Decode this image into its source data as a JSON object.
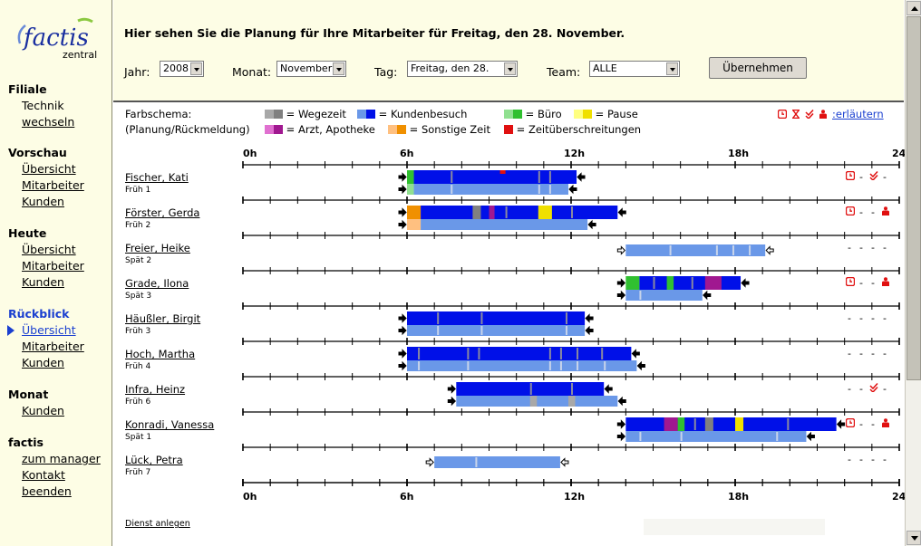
{
  "logo": {
    "brand": "factis",
    "sub": "zentral"
  },
  "sidebar": [
    {
      "title": "Filiale",
      "items": [
        "Technik",
        "wechseln"
      ]
    },
    {
      "title": "Vorschau",
      "items": [
        "Übersicht",
        "Mitarbeiter",
        "Kunden"
      ]
    },
    {
      "title": "Heute",
      "items": [
        "Übersicht",
        "Mitarbeiter",
        "Kunden"
      ]
    },
    {
      "title": "Rückblick",
      "items": [
        "Übersicht",
        "Mitarbeiter",
        "Kunden"
      ],
      "active_item": "Übersicht"
    },
    {
      "title": "Monat",
      "items": [
        "Kunden"
      ]
    },
    {
      "title": "factis",
      "items": [
        "zum manager",
        "Kontakt",
        "beenden"
      ]
    }
  ],
  "header": {
    "headline": "Hier sehen Sie die Planung für Ihre Mitarbeiter für Freitag, den 28. November.",
    "filters": {
      "year_label": "Jahr:",
      "year_value": "2008",
      "month_label": "Monat:",
      "month_value": "November",
      "day_label": "Tag:",
      "day_value": "Freitag, den 28.",
      "team_label": "Team:",
      "team_value": "ALLE"
    },
    "apply_button": "Übernehmen"
  },
  "legend": {
    "title1": "Farbschema:",
    "title2": "(Planung/Rückmeldung)",
    "items": [
      {
        "label": "= Wegezeit",
        "plan": "#a8a8a8",
        "real": "#808080"
      },
      {
        "label": "= Kundenbesuch",
        "plan": "#6a98e8",
        "real": "#0010e8"
      },
      {
        "label": "= Büro",
        "plan": "#90e090",
        "real": "#30c030"
      },
      {
        "label": "= Pause",
        "plan": "#ffff80",
        "real": "#f0e000"
      },
      {
        "label": "= Arzt, Apotheke",
        "plan": "#e070d0",
        "real": "#a01890"
      },
      {
        "label": "= Sonstige Zeit",
        "plan": "#ffc080",
        "real": "#f09000"
      },
      {
        "label": "= Zeitüberschreitungen",
        "plan": "#e01010",
        "real": "#e01010"
      }
    ],
    "explain_link": ":erläutern",
    "icons": [
      "clock-icon",
      "hourglass-icon",
      "double-check-icon",
      "person-icon"
    ]
  },
  "axis": {
    "ticks": [
      "0h",
      "6h",
      "12h",
      "18h",
      "24h"
    ]
  },
  "employees": [
    {
      "name": "Fischer, Kati",
      "shift": "Früh 1",
      "status": [
        "clock",
        "-",
        "check",
        "-"
      ]
    },
    {
      "name": "Förster, Gerda",
      "shift": "Früh 2",
      "status": [
        "clock",
        "-",
        "-",
        "person"
      ]
    },
    {
      "name": "Freier, Heike",
      "shift": "Spät 2",
      "status": [
        "-",
        "-",
        "-",
        "-"
      ]
    },
    {
      "name": "Grade, Ilona",
      "shift": "Spät 3",
      "status": [
        "clock",
        "-",
        "-",
        "person"
      ]
    },
    {
      "name": "Häußler, Birgit",
      "shift": "Früh 3",
      "status": [
        "-",
        "-",
        "-",
        "-"
      ]
    },
    {
      "name": "Hoch, Martha",
      "shift": "Früh 4",
      "status": [
        "-",
        "-",
        "-",
        "-"
      ]
    },
    {
      "name": "Infra, Heinz",
      "shift": "Früh 6",
      "status": [
        "-",
        "-",
        "check",
        "-"
      ]
    },
    {
      "name": "Konradi, Vanessa",
      "shift": "Spät 1",
      "status": [
        "clock",
        "-",
        "-",
        "person"
      ]
    },
    {
      "name": "Lück, Petra",
      "shift": "Früh 7",
      "status": [
        "-",
        "-",
        "-",
        "-"
      ]
    }
  ],
  "chart_data": {
    "type": "gantt",
    "x_unit": "hour",
    "xlim": [
      0,
      24
    ],
    "rows": [
      {
        "name": "Fischer, Kati",
        "real": {
          "start": 6.0,
          "end": 12.2,
          "segments": [
            [
              6.0,
              6.25,
              "office"
            ],
            [
              6.25,
              12.2,
              "visit"
            ],
            [
              9.4,
              9.6,
              "overrun"
            ]
          ],
          "gaps": [
            7.6,
            10.8,
            11.2
          ]
        },
        "plan": {
          "start": 6.0,
          "end": 11.9,
          "segments": [
            [
              6.0,
              6.25,
              "office"
            ],
            [
              6.25,
              11.9,
              "visit"
            ]
          ],
          "gaps": [
            7.6,
            10.8,
            11.2
          ]
        }
      },
      {
        "name": "Förster, Gerda",
        "real": {
          "start": 6.0,
          "end": 13.7,
          "segments": [
            [
              6.0,
              6.5,
              "other"
            ],
            [
              6.5,
              13.7,
              "visit"
            ],
            [
              8.4,
              8.7,
              "travel"
            ],
            [
              9.0,
              9.2,
              "doctor"
            ],
            [
              10.8,
              11.3,
              "pause"
            ]
          ],
          "gaps": [
            9.6,
            12.0
          ]
        },
        "plan": {
          "start": 6.0,
          "end": 12.6,
          "segments": [
            [
              6.0,
              6.5,
              "other"
            ],
            [
              6.5,
              12.6,
              "visit"
            ]
          ],
          "gaps": []
        }
      },
      {
        "name": "Freier, Heike",
        "real": null,
        "plan": {
          "start": 14.0,
          "end": 19.1,
          "segments": [
            [
              14.0,
              19.1,
              "visit"
            ]
          ],
          "gaps": [
            15.6,
            17.3,
            17.9,
            18.5
          ]
        }
      },
      {
        "name": "Grade, Ilona",
        "real": {
          "start": 14.0,
          "end": 18.2,
          "segments": [
            [
              14.0,
              14.5,
              "office"
            ],
            [
              14.5,
              18.2,
              "visit"
            ],
            [
              15.5,
              15.75,
              "office"
            ],
            [
              16.9,
              17.5,
              "doctor"
            ]
          ],
          "gaps": [
            15.0,
            16.4
          ]
        },
        "plan": {
          "start": 14.0,
          "end": 16.8,
          "segments": [
            [
              14.0,
              16.8,
              "visit"
            ]
          ],
          "gaps": [
            14.5
          ]
        }
      },
      {
        "name": "Häußler, Birgit",
        "real": {
          "start": 6.0,
          "end": 12.5,
          "segments": [
            [
              6.0,
              12.5,
              "visit"
            ]
          ],
          "gaps": [
            7.1,
            8.7,
            11.8
          ]
        },
        "plan": {
          "start": 6.0,
          "end": 12.5,
          "segments": [
            [
              6.0,
              12.5,
              "visit"
            ]
          ],
          "gaps": [
            7.1,
            8.7,
            11.8
          ]
        }
      },
      {
        "name": "Hoch, Martha",
        "real": {
          "start": 6.0,
          "end": 14.2,
          "segments": [
            [
              6.0,
              14.2,
              "visit"
            ]
          ],
          "gaps": [
            6.4,
            8.2,
            8.6,
            11.2,
            11.6,
            12.2,
            13.1
          ]
        },
        "plan": {
          "start": 6.0,
          "end": 14.4,
          "segments": [
            [
              6.0,
              14.4,
              "visit"
            ]
          ],
          "gaps": [
            6.4,
            8.2,
            11.2,
            11.6,
            12.2,
            13.2
          ]
        }
      },
      {
        "name": "Infra, Heinz",
        "real": {
          "start": 7.8,
          "end": 13.2,
          "segments": [
            [
              7.8,
              13.2,
              "visit"
            ]
          ],
          "gaps": [
            10.5,
            12.0
          ]
        },
        "plan": {
          "start": 7.8,
          "end": 13.7,
          "segments": [
            [
              7.8,
              13.7,
              "visit"
            ],
            [
              10.5,
              10.75,
              "travel"
            ],
            [
              11.9,
              12.15,
              "travel"
            ]
          ],
          "gaps": []
        }
      },
      {
        "name": "Konradi, Vanessa",
        "real": {
          "start": 14.0,
          "end": 21.7,
          "segments": [
            [
              14.0,
              21.7,
              "visit"
            ],
            [
              15.4,
              15.9,
              "doctor"
            ],
            [
              15.9,
              16.15,
              "office"
            ],
            [
              16.9,
              17.2,
              "travel"
            ],
            [
              18.0,
              18.3,
              "pause"
            ]
          ],
          "gaps": [
            16.5,
            19.9
          ]
        },
        "plan": {
          "start": 14.0,
          "end": 20.6,
          "segments": [
            [
              14.0,
              20.6,
              "visit"
            ]
          ],
          "gaps": [
            14.5,
            16.0,
            19.5
          ]
        }
      },
      {
        "name": "Lück, Petra",
        "real": null,
        "plan": {
          "start": 7.0,
          "end": 11.6,
          "segments": [
            [
              7.0,
              11.6,
              "visit"
            ]
          ],
          "gaps": [
            8.5
          ]
        }
      }
    ]
  },
  "footer": {
    "create_link": "Dienst anlegen"
  },
  "colors": {
    "travel_real": "#808080",
    "travel_plan": "#a8a8a8",
    "visit_real": "#0010e8",
    "visit_plan": "#6a98e8",
    "office_real": "#30c030",
    "office_plan": "#90e090",
    "pause_real": "#f0e000",
    "pause_plan": "#ffff80",
    "doctor_real": "#a01890",
    "doctor_plan": "#e070d0",
    "other_real": "#f09000",
    "other_plan": "#ffc080",
    "overrun": "#e01010",
    "status_red": "#e01010"
  }
}
